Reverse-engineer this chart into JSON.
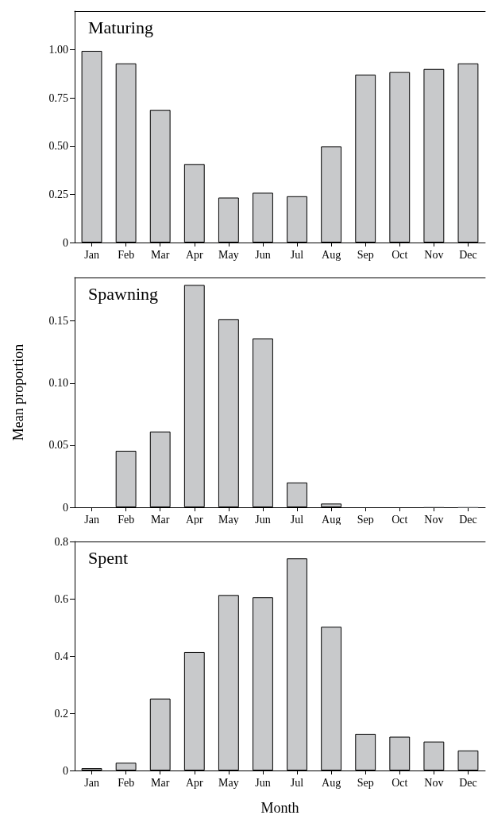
{
  "chart_data": [
    {
      "type": "bar",
      "title": "Maturing",
      "categories": [
        "Jan",
        "Feb",
        "Mar",
        "Apr",
        "May",
        "Jun",
        "Jul",
        "Aug",
        "Sep",
        "Oct",
        "Nov",
        "Dec"
      ],
      "color": "#c8c9cb",
      "values": [
        0.994,
        0.929,
        0.688,
        0.407,
        0.233,
        0.258,
        0.24,
        0.498,
        0.871,
        0.884,
        0.9,
        0.929
      ],
      "ylim": [
        0,
        1.2
      ],
      "yticks": [
        0,
        {
          "value": 0.25,
          "label": "0.25"
        },
        {
          "value": 0.5,
          "label": "0.50"
        },
        {
          "value": 0.75,
          "label": "0.75"
        },
        {
          "value": 1,
          "label": "1.00"
        }
      ]
    },
    {
      "type": "bar",
      "title": "Spawning",
      "ylabel": "Mean proportion",
      "categories": [
        "Jan",
        "Feb",
        "Mar",
        "Apr",
        "May",
        "Jun",
        "Jul",
        "Aug",
        "Sep",
        "Oct",
        "Nov",
        "Dec"
      ],
      "color": "#c8c9cb",
      "values": [
        0,
        0.0455,
        0.061,
        0.179,
        0.1515,
        0.136,
        0.02,
        0.003,
        0,
        0,
        0.0005,
        0.0003
      ],
      "ylim": [
        0,
        0.185
      ],
      "yticks": [
        0,
        0.05,
        {
          "value": 0.1,
          "label": "0.10"
        },
        0.15
      ]
    },
    {
      "type": "bar",
      "title": "Spent",
      "xlabel": "Month",
      "categories": [
        "Jan",
        "Feb",
        "Mar",
        "Apr",
        "May",
        "Jun",
        "Jul",
        "Aug",
        "Sep",
        "Oct",
        "Nov",
        "Dec"
      ],
      "color": "#c8c9cb",
      "values": [
        0.008,
        0.027,
        0.251,
        0.414,
        0.613,
        0.605,
        0.741,
        0.502,
        0.128,
        0.118,
        0.101,
        0.07
      ],
      "ylim": [
        0,
        0.8
      ],
      "yticks": [
        0,
        0.2,
        0.4,
        0.6,
        0.8
      ]
    }
  ]
}
